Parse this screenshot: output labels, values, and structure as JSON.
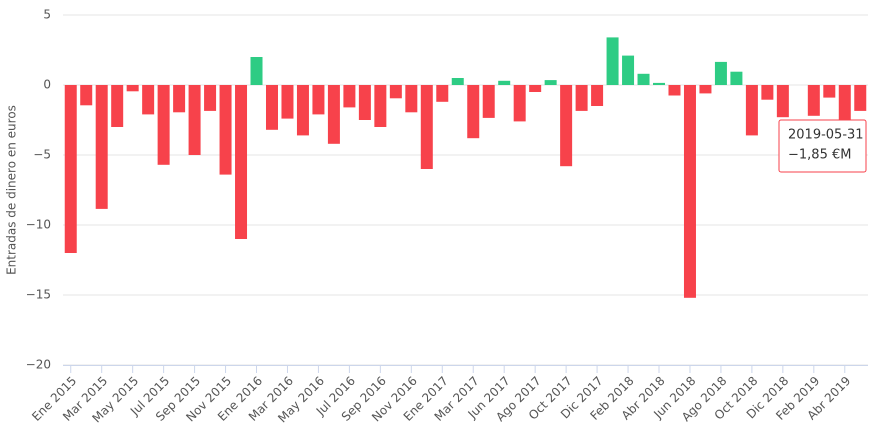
{
  "chart_data": {
    "type": "bar",
    "y_label": "Entradas de dinero en euros",
    "categories": [
      "Ene 2015",
      null,
      "Mar 2015",
      null,
      "May 2015",
      null,
      "Jul 2015",
      null,
      "Sep 2015",
      null,
      "Nov 2015",
      null,
      "Ene 2016",
      null,
      "Mar 2016",
      null,
      "May 2016",
      null,
      "Jul 2016",
      null,
      "Sep 2016",
      null,
      "Nov 2016",
      null,
      "Ene 2017",
      null,
      "Mar 2017",
      null,
      "Jun 2017",
      null,
      "Ago 2017",
      null,
      "Oct 2017",
      null,
      "Dic 2017",
      null,
      "Feb 2018",
      null,
      "Abr 2018",
      null,
      "Jun 2018",
      null,
      "Ago 2018",
      null,
      "Oct 2018",
      null,
      "Dic 2018",
      null,
      "Feb 2019",
      null,
      "Abr 2019",
      null
    ],
    "values": [
      -12.0,
      -1.45,
      -8.85,
      -3.0,
      -0.45,
      -2.1,
      -5.7,
      -1.95,
      -5.0,
      -1.85,
      -6.4,
      -11.0,
      2.0,
      -3.2,
      -2.4,
      -3.6,
      -2.1,
      -4.2,
      -1.6,
      -2.5,
      -3.0,
      -0.95,
      -1.95,
      -6.0,
      -1.2,
      0.5,
      -3.8,
      -2.35,
      0.3,
      -2.6,
      -0.5,
      0.35,
      -5.8,
      -1.85,
      -1.5,
      3.4,
      2.1,
      0.8,
      0.15,
      -0.75,
      -15.2,
      -0.6,
      1.65,
      0.95,
      -3.6,
      -1.05,
      -2.3,
      null,
      -2.2,
      -0.9,
      -2.5,
      -1.85
    ],
    "positive_color": "#2ecc84",
    "negative_color": "#f7424b",
    "ylim": [
      -20,
      5
    ],
    "yticks": [
      {
        "value": -20,
        "label": "−20"
      },
      {
        "value": -15,
        "label": "−15"
      },
      {
        "value": -10,
        "label": "−10"
      },
      {
        "value": -5,
        "label": "−5"
      },
      0,
      5
    ],
    "grid": true,
    "tooltip": {
      "date": "2019-05-31",
      "value": -1.85,
      "value_label": "−1,85 €M"
    }
  }
}
